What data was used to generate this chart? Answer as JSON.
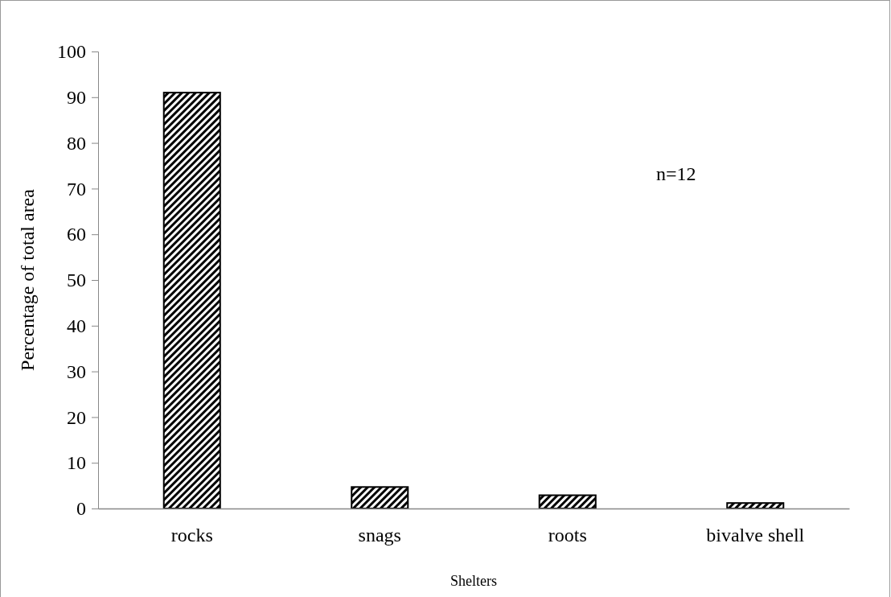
{
  "chart_data": {
    "type": "bar",
    "xlabel": "Shelters",
    "ylabel": "Percentage of total area",
    "categories": [
      "rocks",
      "snags",
      "roots",
      "bivalve  shell"
    ],
    "values": [
      91,
      4.7,
      2.9,
      1.2
    ],
    "color": "#000000",
    "ylim": [
      0,
      100
    ],
    "yticks": [
      0,
      10,
      20,
      30,
      40,
      50,
      60,
      70,
      80,
      90,
      100
    ],
    "annotations": [
      "n=12"
    ]
  }
}
